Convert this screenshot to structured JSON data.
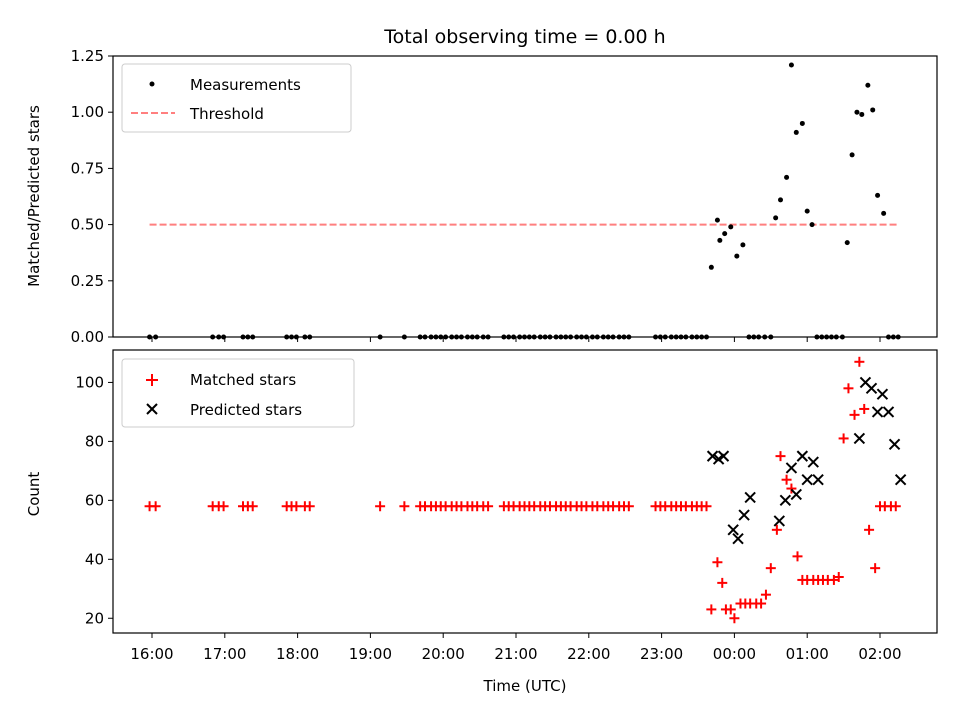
{
  "chart_data": [
    {
      "type": "scatter",
      "title": "Total observing time = 0.00 h",
      "xlabel": "",
      "ylabel": "Matched/Predicted stars",
      "ylim": [
        0,
        1.25
      ],
      "yticks": [
        "0.00",
        "0.25",
        "0.50",
        "0.75",
        "1.00",
        "1.25"
      ],
      "ytick_values": [
        0,
        0.25,
        0.5,
        0.75,
        1.0,
        1.25
      ],
      "legend_position": "top-left",
      "series": [
        {
          "name": "Measurements",
          "marker": "dot",
          "color": "#000000",
          "x": [
            "15:58",
            "16:03",
            "16:50",
            "16:55",
            "16:59",
            "17:15",
            "17:19",
            "17:23",
            "17:51",
            "17:55",
            "17:59",
            "18:06",
            "18:10",
            "19:08",
            "19:28",
            "19:41",
            "19:45",
            "19:50",
            "19:54",
            "19:58",
            "20:02",
            "20:07",
            "20:11",
            "20:15",
            "20:20",
            "20:24",
            "20:28",
            "20:33",
            "20:37",
            "20:50",
            "20:54",
            "20:58",
            "21:03",
            "21:07",
            "21:11",
            "21:15",
            "21:20",
            "21:24",
            "21:28",
            "21:33",
            "21:37",
            "21:41",
            "21:45",
            "21:50",
            "21:54",
            "21:58",
            "22:03",
            "22:07",
            "22:12",
            "22:16",
            "22:20",
            "22:25",
            "22:29",
            "22:33",
            "22:55",
            "22:59",
            "23:03",
            "23:08",
            "23:12",
            "23:16",
            "23:20",
            "23:25",
            "23:29",
            "23:33",
            "23:37",
            "23:41",
            "23:46",
            "23:48",
            "23:52",
            "23:57",
            "00:02",
            "00:07",
            "00:12",
            "00:16",
            "00:20",
            "00:25",
            "00:30",
            "00:34",
            "00:38",
            "00:43",
            "00:47",
            "00:51",
            "00:56",
            "01:00",
            "01:04",
            "01:08",
            "01:12",
            "01:16",
            "01:20",
            "01:24",
            "01:29",
            "01:33",
            "01:37",
            "01:41",
            "01:45",
            "01:50",
            "01:54",
            "01:58",
            "02:03",
            "02:07",
            "02:11",
            "02:15"
          ],
          "y": [
            0,
            0,
            0,
            0,
            0,
            0,
            0,
            0,
            0,
            0,
            0,
            0,
            0,
            0,
            0,
            0,
            0,
            0,
            0,
            0,
            0,
            0,
            0,
            0,
            0,
            0,
            0,
            0,
            0,
            0,
            0,
            0,
            0,
            0,
            0,
            0,
            0,
            0,
            0,
            0,
            0,
            0,
            0,
            0,
            0,
            0,
            0,
            0,
            0,
            0,
            0,
            0,
            0,
            0,
            0,
            0,
            0,
            0,
            0,
            0,
            0,
            0,
            0,
            0,
            0,
            0.31,
            0.52,
            0.43,
            0.46,
            0.49,
            0.36,
            0.41,
            0,
            0,
            0,
            0,
            0,
            0.53,
            0.61,
            0.71,
            1.21,
            0.91,
            0.95,
            0.56,
            0.5,
            0,
            0,
            0,
            0,
            0,
            0,
            0.42,
            0.81,
            1.0,
            0.99,
            1.12,
            1.01,
            0.63,
            0.55,
            0,
            0,
            0
          ]
        },
        {
          "name": "Threshold",
          "marker": "dashed-line",
          "color": "#ff7f7f",
          "x": [
            "15:58",
            "02:15"
          ],
          "y": [
            0.5,
            0.5
          ]
        }
      ]
    },
    {
      "type": "scatter",
      "title": "",
      "xlabel": "Time (UTC)",
      "ylabel": "Count",
      "ylim": [
        15,
        111
      ],
      "yticks": [
        "20",
        "40",
        "60",
        "80",
        "100"
      ],
      "ytick_values": [
        20,
        40,
        60,
        80,
        100
      ],
      "xticks": [
        "16:00",
        "17:00",
        "18:00",
        "19:00",
        "20:00",
        "21:00",
        "22:00",
        "23:00",
        "00:00",
        "01:00",
        "02:00"
      ],
      "legend_position": "top-left",
      "series": [
        {
          "name": "Matched stars",
          "marker": "plus",
          "color": "#ff0000",
          "x": [
            "15:58",
            "16:03",
            "16:50",
            "16:55",
            "16:59",
            "17:15",
            "17:19",
            "17:23",
            "17:51",
            "17:55",
            "17:59",
            "18:06",
            "18:10",
            "19:08",
            "19:28",
            "19:41",
            "19:45",
            "19:50",
            "19:54",
            "19:58",
            "20:02",
            "20:07",
            "20:11",
            "20:15",
            "20:20",
            "20:24",
            "20:28",
            "20:33",
            "20:37",
            "20:50",
            "20:54",
            "20:58",
            "21:03",
            "21:07",
            "21:11",
            "21:15",
            "21:20",
            "21:24",
            "21:28",
            "21:33",
            "21:37",
            "21:41",
            "21:45",
            "21:50",
            "21:54",
            "21:58",
            "22:03",
            "22:07",
            "22:12",
            "22:16",
            "22:20",
            "22:25",
            "22:29",
            "22:33",
            "22:55",
            "22:59",
            "23:03",
            "23:08",
            "23:12",
            "23:16",
            "23:20",
            "23:25",
            "23:29",
            "23:33",
            "23:37",
            "23:41",
            "23:46",
            "23:50",
            "23:53",
            "23:57",
            "00:00",
            "00:05",
            "00:09",
            "00:13",
            "00:18",
            "00:22",
            "00:26",
            "00:30",
            "00:35",
            "00:38",
            "00:43",
            "00:47",
            "00:52",
            "00:56",
            "01:00",
            "01:05",
            "01:09",
            "01:13",
            "01:17",
            "01:22",
            "01:26",
            "01:30",
            "01:34",
            "01:39",
            "01:43",
            "01:47",
            "01:51",
            "01:56",
            "02:00",
            "02:04",
            "02:09",
            "02:13"
          ],
          "y": [
            58,
            58,
            58,
            58,
            58,
            58,
            58,
            58,
            58,
            58,
            58,
            58,
            58,
            58,
            58,
            58,
            58,
            58,
            58,
            58,
            58,
            58,
            58,
            58,
            58,
            58,
            58,
            58,
            58,
            58,
            58,
            58,
            58,
            58,
            58,
            58,
            58,
            58,
            58,
            58,
            58,
            58,
            58,
            58,
            58,
            58,
            58,
            58,
            58,
            58,
            58,
            58,
            58,
            58,
            58,
            58,
            58,
            58,
            58,
            58,
            58,
            58,
            58,
            58,
            58,
            23,
            39,
            32,
            23,
            23,
            20,
            25,
            25,
            25,
            25,
            25,
            28,
            37,
            50,
            75,
            67,
            64,
            41,
            33,
            33,
            33,
            33,
            33,
            33,
            33,
            34,
            81,
            98,
            89,
            107,
            91,
            50,
            37,
            58,
            58,
            58,
            58
          ]
        },
        {
          "name": "Predicted stars",
          "marker": "x",
          "color": "#000000",
          "x": [
            "23:42",
            "23:47",
            "23:51",
            "23:59",
            "00:03",
            "00:08",
            "00:13",
            "00:37",
            "00:42",
            "00:47",
            "00:51",
            "00:56",
            "01:00",
            "01:05",
            "01:09",
            "01:43",
            "01:48",
            "01:53",
            "01:58",
            "02:02",
            "02:07",
            "02:12",
            "02:17"
          ],
          "y": [
            75,
            74,
            75,
            50,
            47,
            55,
            61,
            53,
            60,
            71,
            62,
            75,
            67,
            73,
            67,
            81,
            100,
            98,
            90,
            96,
            90,
            79,
            67
          ]
        }
      ]
    }
  ]
}
